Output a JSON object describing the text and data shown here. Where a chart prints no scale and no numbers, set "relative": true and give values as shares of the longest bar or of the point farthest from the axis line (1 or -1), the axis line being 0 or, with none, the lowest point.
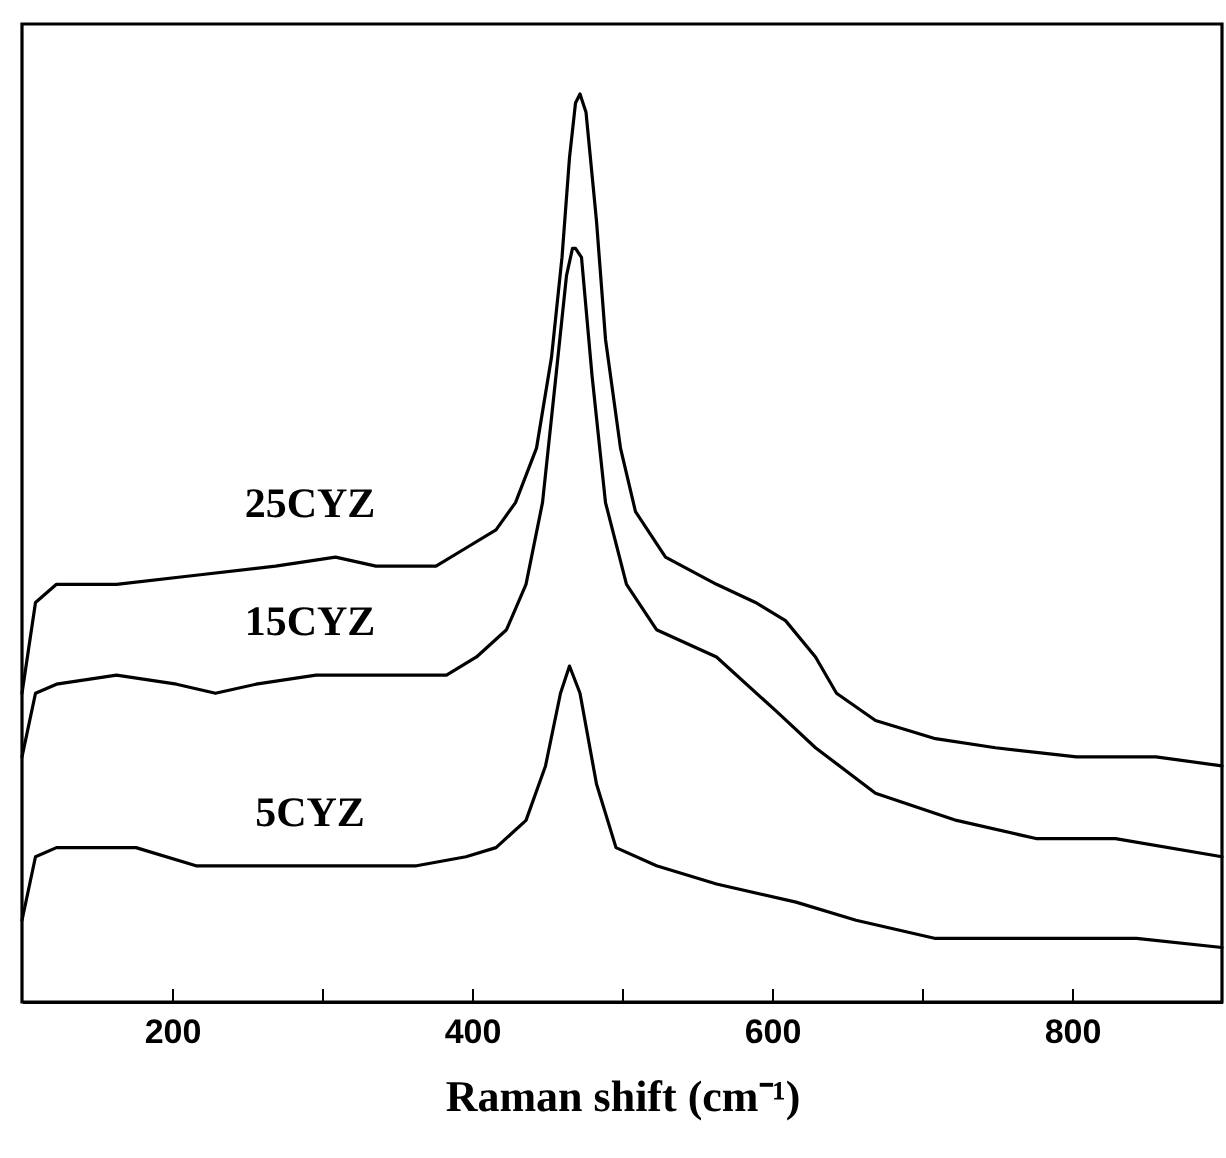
{
  "chart_data": {
    "type": "line",
    "xlabel": "Raman shift (cm⁻¹)",
    "relative": true,
    "tick_labels": "x",
    "xlim": [
      100,
      900
    ],
    "xticks": [
      200,
      {
        "value": 300,
        "label": null
      },
      400,
      {
        "value": 500,
        "label": null
      },
      600,
      {
        "value": 700,
        "label": null
      },
      800
    ],
    "line_style": "solid",
    "marker": "none",
    "grid": false,
    "series": [
      {
        "name": "25CYZ",
        "color": "#000000",
        "x": [
          100,
          109,
          123,
          163,
          216,
          269,
          309,
          336,
          376,
          396,
          416,
          429,
          443,
          453,
          460,
          465,
          469,
          472,
          476,
          483,
          489,
          499,
          509,
          529,
          563,
          589,
          609,
          629,
          643,
          669,
          709,
          749,
          803,
          856,
          900
        ],
        "values": [
          0.34,
          0.44,
          0.46,
          0.46,
          0.47,
          0.48,
          0.49,
          0.48,
          0.48,
          0.5,
          0.52,
          0.55,
          0.61,
          0.71,
          0.82,
          0.93,
          0.99,
          1,
          0.98,
          0.86,
          0.73,
          0.61,
          0.54,
          0.49,
          0.46,
          0.44,
          0.42,
          0.38,
          0.34,
          0.31,
          0.29,
          0.28,
          0.27,
          0.27,
          0.26
        ]
      },
      {
        "name": "15CYZ",
        "color": "#000000",
        "x": [
          100,
          109,
          123,
          163,
          203,
          229,
          256,
          296,
          349,
          383,
          403,
          423,
          436,
          447,
          456,
          463,
          467,
          469,
          473,
          480,
          489,
          503,
          523,
          563,
          603,
          629,
          669,
          723,
          776,
          829,
          900
        ],
        "values": [
          0.27,
          0.34,
          0.35,
          0.36,
          0.35,
          0.34,
          0.35,
          0.36,
          0.36,
          0.36,
          0.38,
          0.41,
          0.46,
          0.55,
          0.69,
          0.8,
          0.83,
          0.83,
          0.82,
          0.69,
          0.55,
          0.46,
          0.41,
          0.38,
          0.32,
          0.28,
          0.23,
          0.2,
          0.18,
          0.18,
          0.16
        ]
      },
      {
        "name": "5CYZ",
        "color": "#000000",
        "x": [
          100,
          109,
          123,
          176,
          216,
          256,
          309,
          363,
          396,
          416,
          436,
          449,
          459,
          465,
          472,
          483,
          496,
          523,
          563,
          616,
          656,
          709,
          776,
          843,
          900
        ],
        "values": [
          0.09,
          0.16,
          0.17,
          0.17,
          0.15,
          0.15,
          0.15,
          0.15,
          0.16,
          0.17,
          0.2,
          0.26,
          0.34,
          0.37,
          0.34,
          0.24,
          0.17,
          0.15,
          0.13,
          0.11,
          0.09,
          0.07,
          0.07,
          0.07,
          0.06
        ]
      }
    ]
  }
}
